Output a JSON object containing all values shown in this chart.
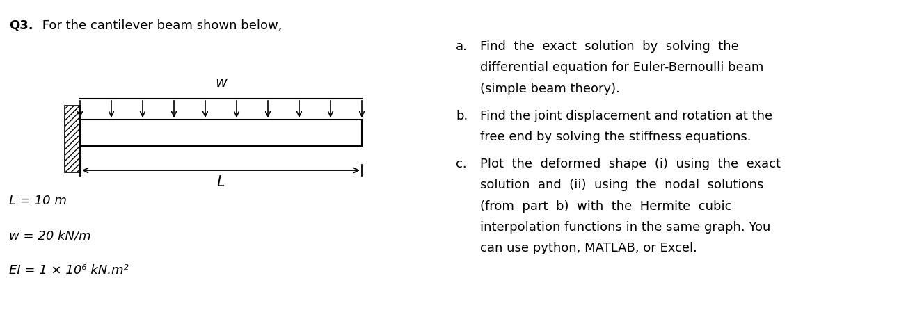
{
  "title_bold": "Q3.",
  "title_normal": " For the cantilever beam shown below,",
  "load_label": "w",
  "length_label": "L",
  "param_L": "L = 10 m",
  "param_w": "w = 20 kN/m",
  "param_EI": "EI = 1 × 10⁶ kN.m²",
  "items_a_line1": "Find  the  exact  solution  by  solving  the",
  "items_a_line2": "differential equation for Euler-Bernoulli beam",
  "items_a_line3": "(simple beam theory).",
  "items_b_line1": "Find the joint displacement and rotation at the",
  "items_b_line2": "free end by solving the stiffness equations.",
  "items_c_line1": "Plot  the  deformed  shape  (i)  using  the  exact",
  "items_c_line2": "solution  and  (ii)  using  the  nodal  solutions",
  "items_c_line3": "(from  part  b)  with  the  Hermite  cubic",
  "items_c_line4": "interpolation functions in the same graph. You",
  "items_c_line5": "can use python, MATLAB, or Excel.",
  "bg_color": "#ffffff",
  "text_color": "#000000",
  "num_arrows": 10,
  "fig_width": 12.92,
  "fig_height": 4.46,
  "dpi": 100
}
